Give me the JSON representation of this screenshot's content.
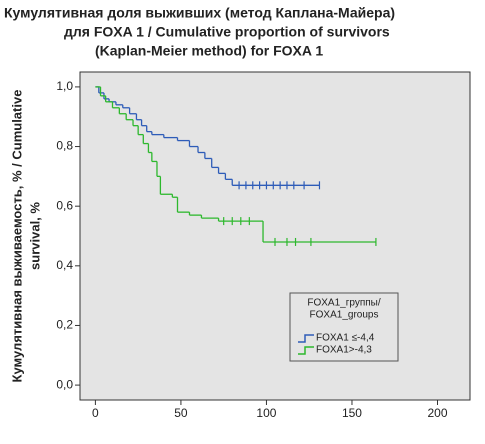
{
  "chart_data": {
    "type": "step",
    "title": [
      "Кумулятивная доля выживших (метод Каплана-Майера)",
      "для FOXA 1 / Cumulative proportion of survivors",
      "(Kaplan-Meier method) for FOXA 1"
    ],
    "y_label": [
      "Кумулятивная выживаемость, % / Cumulative",
      "survival, %"
    ],
    "xlim": [
      -9,
      219
    ],
    "ylim": [
      -0.05,
      1.05
    ],
    "xticks": [
      0,
      50,
      100,
      150,
      200
    ],
    "yticks": [
      {
        "value": 0,
        "label": "0,0"
      },
      {
        "value": 0.2,
        "label": "0,2"
      },
      {
        "value": 0.4,
        "label": "0,4"
      },
      {
        "value": 0.6,
        "label": "0,6"
      },
      {
        "value": 0.8,
        "label": "0,8"
      },
      {
        "value": 1,
        "label": "1,0"
      }
    ],
    "legend_title": [
      "FOXA1_группы/",
      "FOXA1_groups"
    ],
    "series": [
      {
        "name": "FOXA1 ≤-4,4",
        "color": "#2e5cb8",
        "x": [
          0,
          2,
          5,
          8,
          12,
          16,
          20,
          24,
          27,
          30,
          33,
          40,
          48,
          55,
          60,
          64,
          68,
          72,
          76,
          80,
          131
        ],
        "values": [
          1.0,
          0.98,
          0.96,
          0.95,
          0.94,
          0.93,
          0.91,
          0.89,
          0.87,
          0.85,
          0.84,
          0.83,
          0.82,
          0.8,
          0.78,
          0.76,
          0.73,
          0.71,
          0.69,
          0.67,
          0.67
        ],
        "censor_x": [
          84,
          88,
          92,
          96,
          100,
          104,
          108,
          112,
          116,
          122,
          131
        ],
        "censor_values": [
          0.67,
          0.67,
          0.67,
          0.67,
          0.67,
          0.67,
          0.67,
          0.67,
          0.67,
          0.67,
          0.67
        ]
      },
      {
        "name": "FOXA1>-4,3",
        "color": "#2db82d",
        "x": [
          0,
          3,
          6,
          10,
          14,
          18,
          22,
          25,
          28,
          31,
          33,
          36,
          38,
          45,
          48,
          55,
          62,
          72,
          98,
          164
        ],
        "values": [
          1.0,
          0.97,
          0.95,
          0.93,
          0.91,
          0.89,
          0.87,
          0.84,
          0.81,
          0.78,
          0.75,
          0.7,
          0.64,
          0.63,
          0.58,
          0.57,
          0.56,
          0.55,
          0.48,
          0.48
        ],
        "censor_x": [
          75,
          80,
          85,
          90,
          105,
          112,
          117,
          126,
          164
        ],
        "censor_values": [
          0.55,
          0.55,
          0.55,
          0.55,
          0.48,
          0.48,
          0.48,
          0.48,
          0.48
        ]
      }
    ]
  }
}
